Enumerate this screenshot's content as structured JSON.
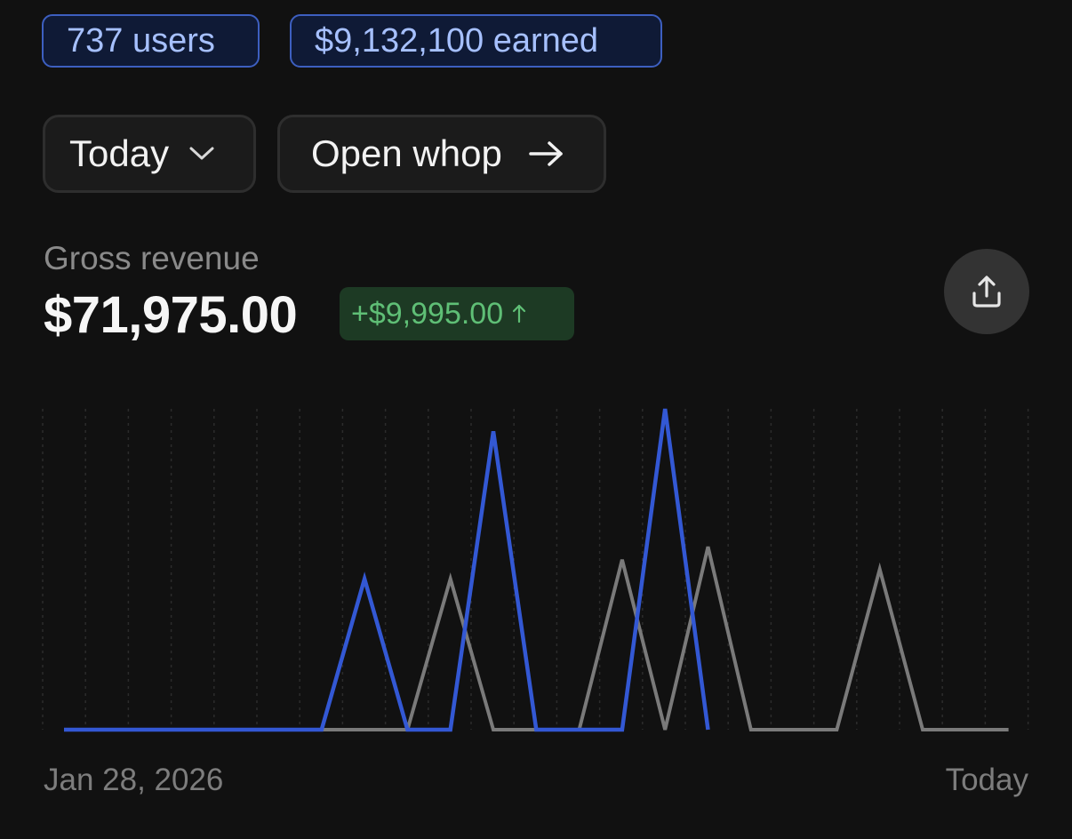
{
  "stats": {
    "users": "737 users",
    "earned": "$9,132,100 earned"
  },
  "controls": {
    "range_label": "Today",
    "range_icon": "chevron-down-icon",
    "open_label": "Open whop",
    "open_icon": "arrow-right-icon"
  },
  "metric": {
    "label": "Gross revenue",
    "value": "$71,975.00",
    "delta": "+$9,995.00",
    "delta_icon": "arrow-up-icon",
    "share_icon": "share-icon"
  },
  "colors": {
    "current": "#3358d4",
    "previous": "#7a7a7a",
    "positive": "#5fbf76"
  },
  "chart_data": {
    "type": "line",
    "x_labels": [
      "Jan 28, 2026",
      "Today"
    ],
    "ylim": [
      0,
      1
    ],
    "grid": "vertical-dotted",
    "series": [
      {
        "id": "current",
        "values": [
          0,
          0,
          0,
          0,
          0,
          0,
          0,
          0.47,
          0,
          0,
          0.93,
          0,
          0,
          0,
          1.0,
          0
        ]
      },
      {
        "id": "previous",
        "values": [
          0,
          0,
          0,
          0,
          0,
          0,
          0,
          0,
          0,
          0.47,
          0,
          0,
          0,
          0.53,
          0,
          0.57,
          0,
          0,
          0,
          0.5,
          0,
          0,
          0
        ]
      }
    ]
  }
}
